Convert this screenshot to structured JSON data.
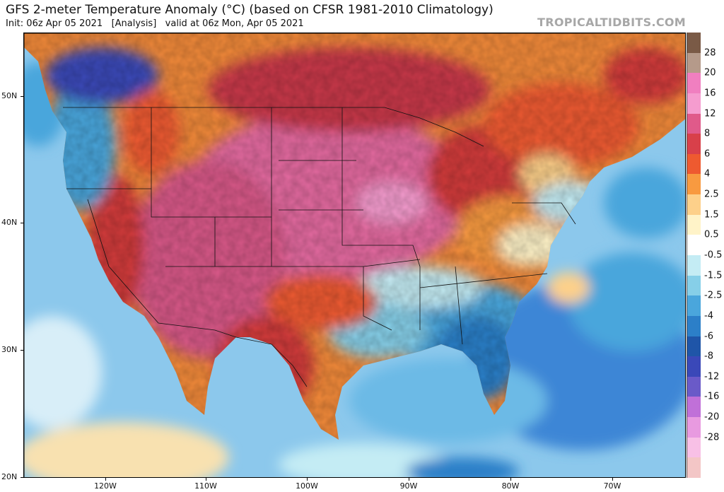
{
  "header": {
    "title": "GFS 2-meter Temperature Anomaly (°C) (based on CFSR 1981-2010 Climatology)",
    "subtitle": "Init: 06z Apr 05 2021   [Analysis]   valid at 06z Mon, Apr 05 2021",
    "brand": "TROPICALTIDBITS.COM"
  },
  "axes": {
    "lat_labels": [
      "50N",
      "40N",
      "30N",
      "20N"
    ],
    "lon_labels": [
      "120W",
      "110W",
      "100W",
      "90W",
      "80W",
      "70W"
    ]
  },
  "colorbar": {
    "labels": [
      "28",
      "20",
      "16",
      "12",
      "8",
      "6",
      "4",
      "2.5",
      "1.5",
      "0.5",
      "-0.5",
      "-1.5",
      "-2.5",
      "-4",
      "-6",
      "-8",
      "-12",
      "-16",
      "-20",
      "-28"
    ],
    "colors": [
      "#7a5a46",
      "#b59a8a",
      "#f07fc0",
      "#f59ccf",
      "#e05a8a",
      "#d8404a",
      "#ee5a30",
      "#f89a40",
      "#fdd08a",
      "#fff3c8",
      "#ffffff",
      "#c4ecf4",
      "#86cfe8",
      "#4aa6dc",
      "#2c7fc8",
      "#1f55a8",
      "#3a48b8",
      "#6a5ac8",
      "#c070d8",
      "#e89ae0",
      "#f8c0e6",
      "#f3c6c6"
    ]
  },
  "map": {
    "colors": {
      "ocean_cool": "#8cc8ec",
      "ocean_deep": "#3c86d6",
      "warm_pink": "#e46aa0",
      "hot_red": "#d23a3a",
      "orange": "#f28a3a",
      "pale": "#fbe6b6"
    }
  }
}
